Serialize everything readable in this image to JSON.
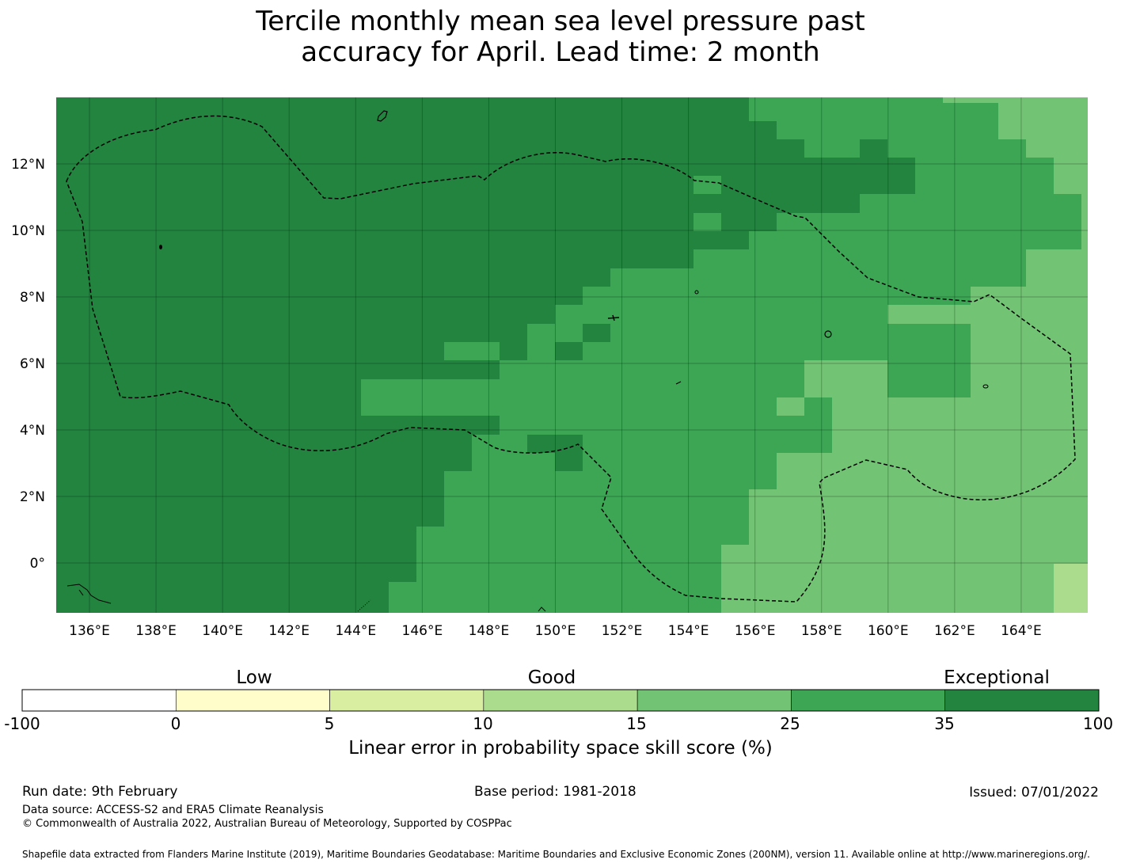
{
  "title_line1": "Tercile monthly mean sea level pressure past",
  "title_line2": "accuracy for April. Lead time: 2 month",
  "colors": {
    "dark_green": "#23843F",
    "mid_green": "#3CA655",
    "light_green": "#72C374",
    "pale_green": "#ABDC8E",
    "border": "#000000"
  },
  "map": {
    "x_ticks": [
      "136°E",
      "138°E",
      "140°E",
      "142°E",
      "144°E",
      "146°E",
      "148°E",
      "150°E",
      "152°E",
      "154°E",
      "156°E",
      "158°E",
      "160°E",
      "162°E",
      "164°E"
    ],
    "y_ticks": [
      "12°N",
      "10°N",
      "8°N",
      "6°N",
      "4°N",
      "2°N",
      "0°"
    ],
    "lon_range": [
      135,
      166
    ],
    "lat_range": [
      -1.5,
      14
    ]
  },
  "legend": {
    "categories": [
      "Low",
      "Good",
      "Exceptional"
    ],
    "ticks": [
      "-100",
      "0",
      "5",
      "10",
      "15",
      "25",
      "35",
      "100"
    ],
    "colors": [
      "#FFFFFF",
      "#FFFECB",
      "#D9EEA0",
      "#ABDC8E",
      "#72C374",
      "#3CA655",
      "#23843F"
    ],
    "title": "Linear error in probability space skill score (%)"
  },
  "footer": {
    "run_date": "Run date: 9th February",
    "base_period": "Base period: 1981-2018",
    "issued": "Issued: 07/01/2022",
    "data_source": "Data source: ACCESS-S2 and ERA5 Climate Reanalysis",
    "copyright": "© Commonwealth of Australia 2022, Australian Bureau of Meteorology, Supported by COSPPac",
    "shapefile": "Shapefile data extracted from Flanders Marine Institute (2019), Maritime Boundaries Geodatabase: Maritime Boundaries and Exclusive Economic Zones (200NM), version 11. Available online at http://www.marineregions.org/."
  }
}
